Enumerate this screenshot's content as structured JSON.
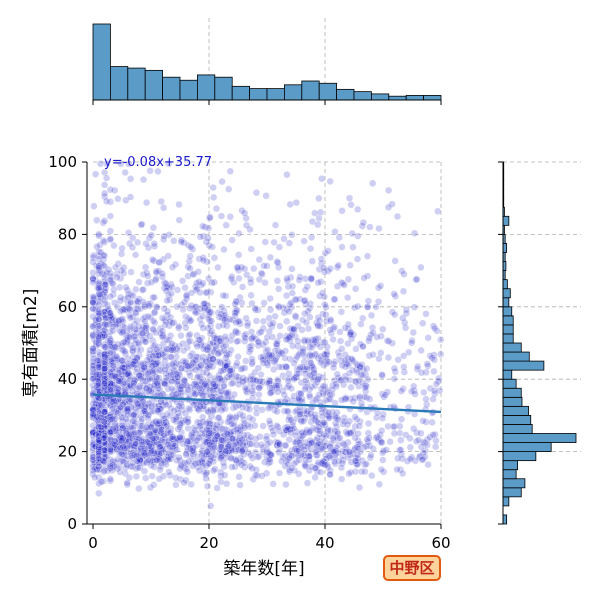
{
  "chart_data": {
    "type": "scatter",
    "xlabel": "築年数[年]",
    "ylabel": "専有面積[m2]",
    "xlim": [
      0,
      60
    ],
    "ylim": [
      0,
      100
    ],
    "x_ticks": [
      0,
      20,
      40,
      60
    ],
    "y_ticks": [
      0,
      20,
      40,
      60,
      80,
      100
    ],
    "grid": true,
    "annotation": "y=-0.08x+35.77",
    "regression": {
      "slope": -0.08,
      "intercept": 35.77
    },
    "badge_label": "中野区",
    "colors": {
      "points": "#2424c8",
      "regression_line": "#2a7ab8",
      "histogram": "#5b9bc8",
      "annotation": "#1a1acc",
      "badge_fill": "#ffd39a",
      "badge_border": "#e05a10",
      "badge_text": "#c0281a"
    },
    "scatter_summary": {
      "point_count_approx": 3500,
      "point_alpha": 0.22,
      "x_distribution": "heavily concentrated near 0 years, gradually fewer toward 60",
      "y_distribution": "concentrated 15-45 m2, clustered bands near 20-25 and 35-45, sparse above 60"
    },
    "top_histogram": {
      "bin_width": 3,
      "bins_start": [
        0,
        3,
        6,
        9,
        12,
        15,
        18,
        21,
        24,
        27,
        30,
        33,
        36,
        39,
        42,
        45,
        48,
        51,
        54,
        57
      ],
      "counts": [
        100,
        44,
        42,
        39,
        30,
        26,
        33,
        30,
        18,
        15,
        15,
        20,
        25,
        22,
        14,
        11,
        8,
        5,
        6,
        6
      ]
    },
    "right_histogram": {
      "bin_width": 2.5,
      "bins_start": [
        0,
        2.5,
        5,
        7.5,
        10,
        12.5,
        15,
        17.5,
        20,
        22.5,
        25,
        27.5,
        30,
        32.5,
        35,
        37.5,
        40,
        42.5,
        45,
        47.5,
        50,
        52.5,
        55,
        57.5,
        60,
        62.5,
        65,
        67.5,
        70,
        72.5,
        75,
        77.5,
        80,
        82.5,
        85,
        87.5,
        90,
        92.5,
        95,
        97.5
      ],
      "counts": [
        5,
        0,
        8,
        25,
        30,
        18,
        20,
        45,
        66,
        100,
        40,
        38,
        35,
        26,
        25,
        18,
        12,
        56,
        36,
        25,
        14,
        14,
        14,
        12,
        8,
        10,
        6,
        3,
        4,
        3,
        5,
        3,
        2,
        8,
        2,
        1,
        1,
        1,
        1,
        1
      ]
    }
  }
}
